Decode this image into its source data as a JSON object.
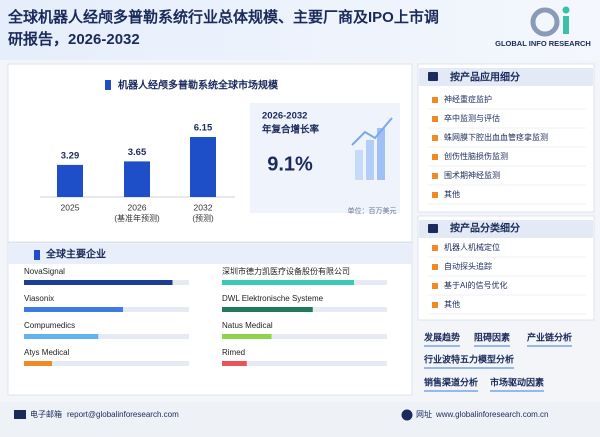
{
  "header": {
    "title": [
      "全球机器人经颅多普勒系统行业总体规模、主要厂商及IPO上市调",
      "研报告，2026-2032"
    ],
    "logo": "GLOBAL INFO RESEARCH"
  },
  "chart_data": {
    "type": "bar",
    "title": "机器人经颅多普勒系统全球市场规模",
    "categories": [
      "2025",
      "2026",
      "2032"
    ],
    "category_notes": [
      null,
      "(基准年预测)",
      "(预测)"
    ],
    "values": [
      3.29,
      3.65,
      6.15
    ],
    "color": "#1f4fc8",
    "unit": "单位：百万美元"
  },
  "cagr": {
    "period": "2026-2032",
    "label": "年复合增长率",
    "value": "9.1%"
  },
  "companies": {
    "title": "全球主要企业",
    "items": [
      "NovaSignal",
      "Viasonix",
      "Compumedics",
      "Atys Medical",
      "深圳市德力凯医疗设备股份有限公司",
      "DWL Elektronische Systeme",
      "Natus Medical",
      "Rimed"
    ]
  },
  "application": {
    "title": "按产品应用细分",
    "items": [
      "神经重症监护",
      "卒中监测与评估",
      "蛛网膜下腔出血血管痉挛监测",
      "创伤性脑损伤监测",
      "围术期神经监测",
      "其他"
    ]
  },
  "product_type": {
    "title": "按产品分类细分",
    "items": [
      "机器人机械定位",
      "自动探头追踪",
      "基于AI的信号优化",
      "其他"
    ]
  },
  "tags": [
    "发展趋势",
    "阻碍因素",
    "产业链分析",
    "行业波特五力模型分析",
    "销售渠道分析",
    "市场驱动因素"
  ],
  "footer": {
    "email_label": "电子邮箱",
    "email": "report@globalinforesearch.com",
    "web_label": "网址",
    "web": "www.globalinforesearch.com.cn"
  }
}
